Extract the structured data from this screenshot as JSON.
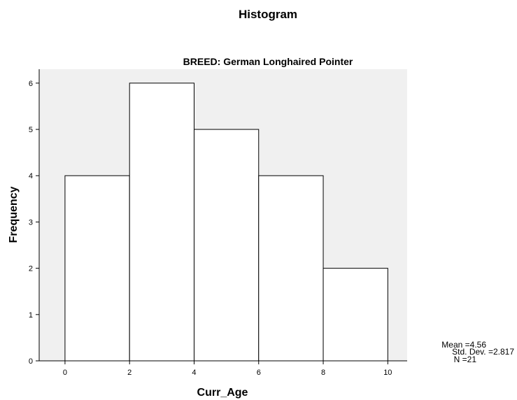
{
  "chart_data": {
    "type": "bar",
    "title": "Histogram",
    "subtitle": "BREED: German Longhaired Pointer",
    "xlabel": "Curr_Age",
    "ylabel": "Frequency",
    "bin_edges": [
      0,
      2,
      4,
      6,
      8,
      10
    ],
    "values": [
      4,
      6,
      5,
      4,
      2
    ],
    "xlim": [
      -0.8,
      10.6
    ],
    "ylim": [
      0,
      6.3
    ],
    "x_ticks": [
      "0",
      "2",
      "4",
      "6",
      "8",
      "10"
    ],
    "y_ticks": [
      "0",
      "1",
      "2",
      "3",
      "4",
      "5",
      "6"
    ],
    "grid": false,
    "plot_background": "#f0f0f0",
    "bar_fill": "#ffffff",
    "bar_stroke": "#000000",
    "stats": {
      "mean": "Mean =4.56",
      "std": "Std. Dev. =2.817",
      "n": "N =21"
    }
  }
}
